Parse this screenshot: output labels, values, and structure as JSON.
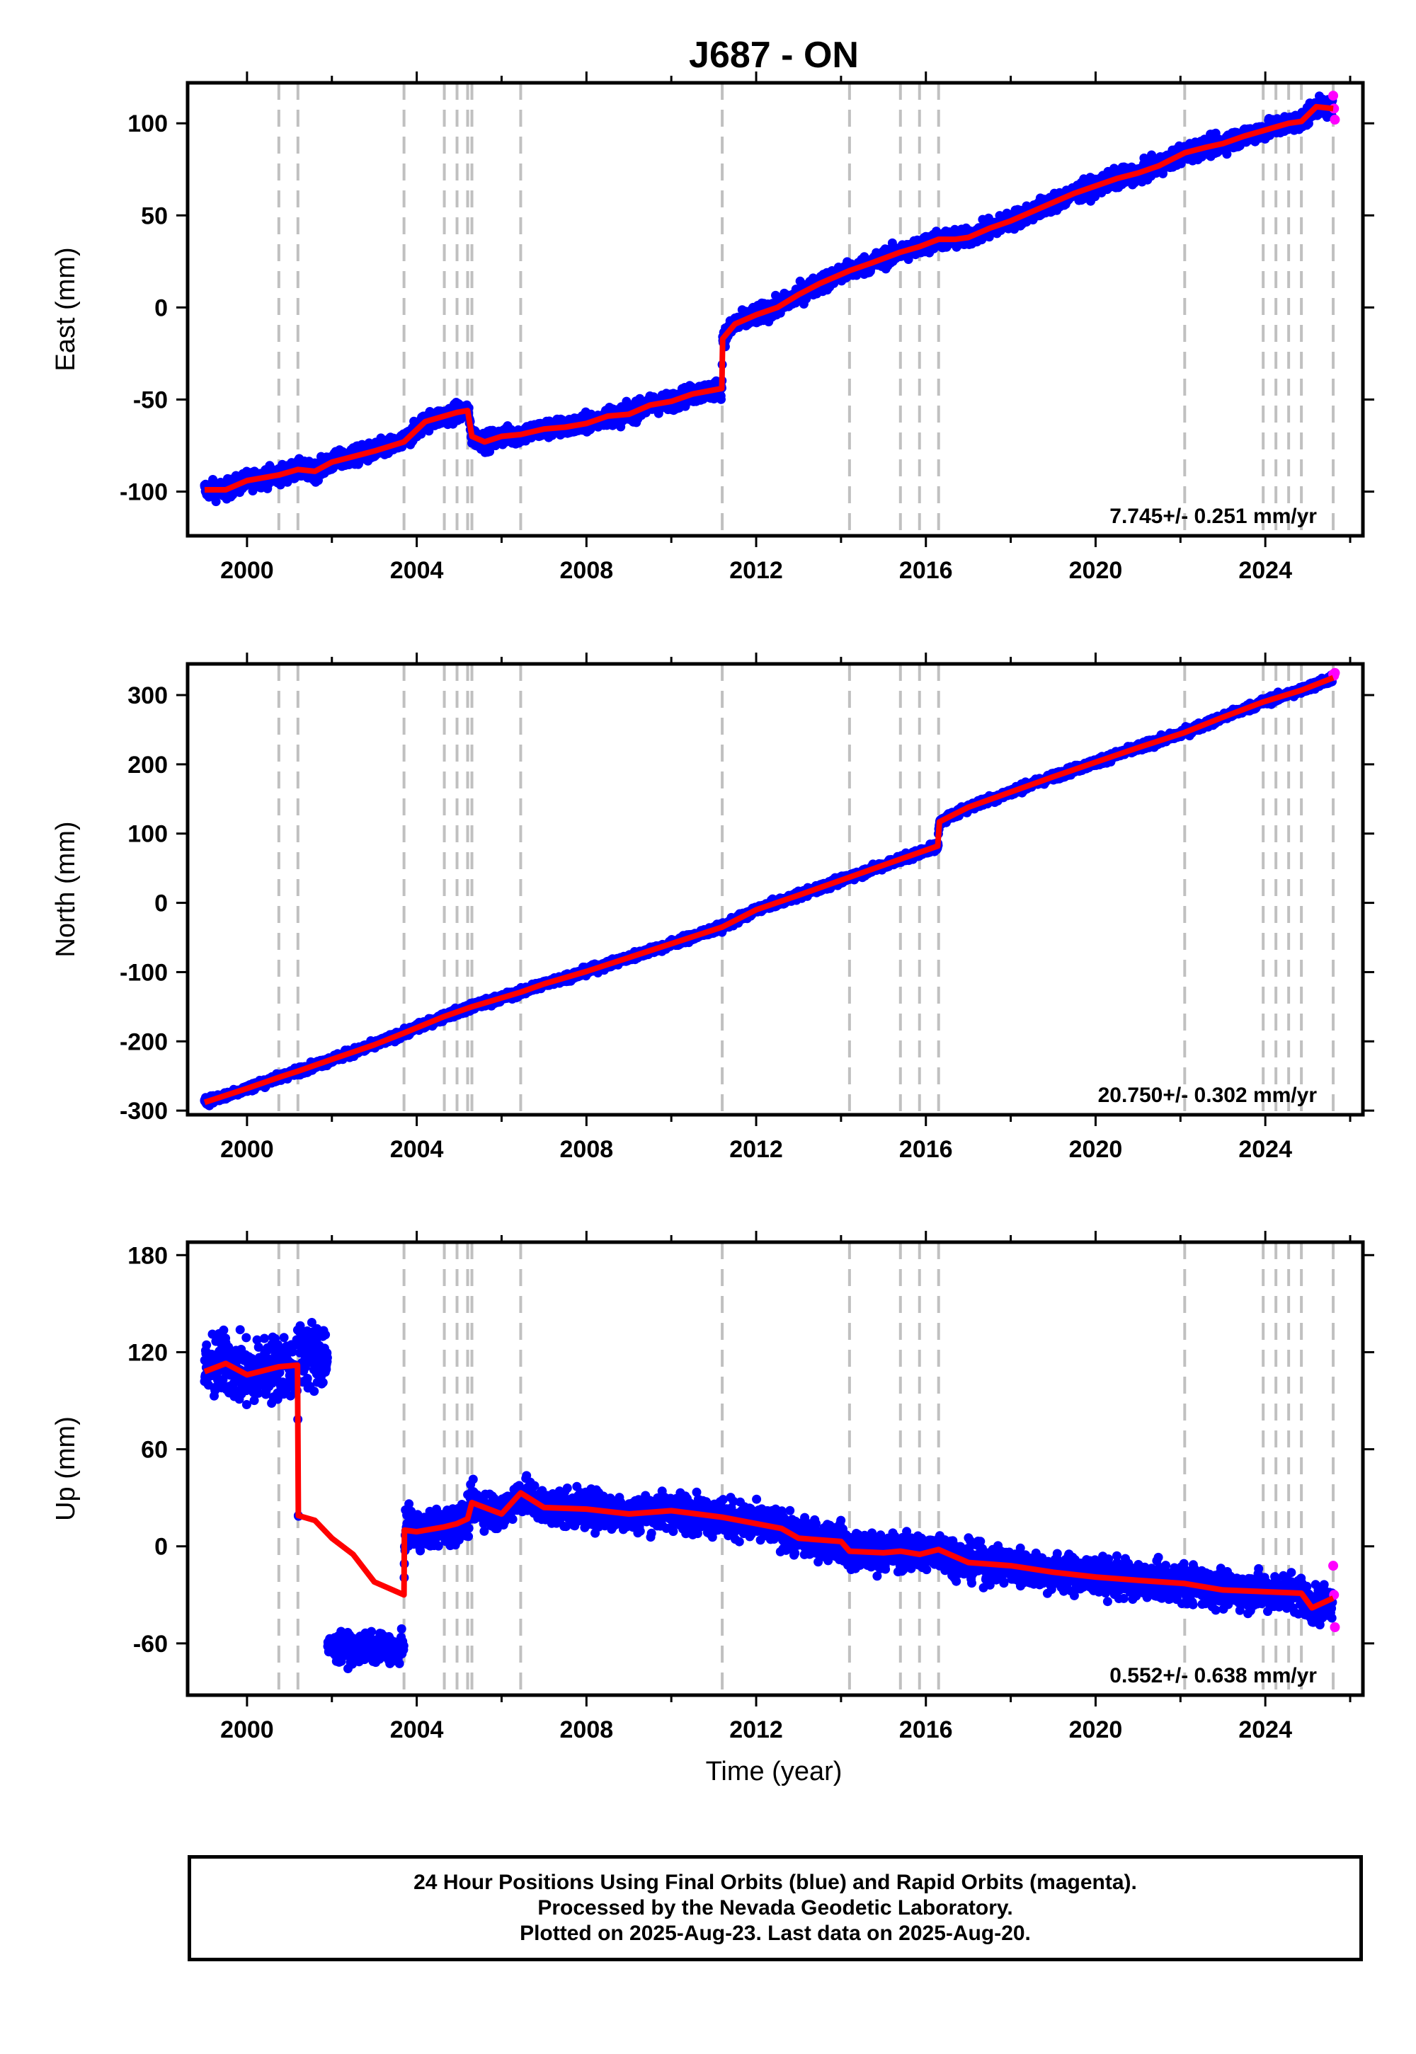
{
  "chart_data": {
    "title": "J687 - ON",
    "xlabel": "Time (year)",
    "x_ticks": [
      "2000",
      "2004",
      "2008",
      "2012",
      "2016",
      "2020",
      "2024"
    ],
    "xlim": [
      1998.6,
      2026.3
    ],
    "event_lines": [
      2000.75,
      2001.2,
      2003.7,
      2004.65,
      2004.95,
      2005.2,
      2005.3,
      2006.45,
      2011.2,
      2014.2,
      2015.4,
      2015.85,
      2016.3,
      2022.1,
      2023.95,
      2024.25,
      2024.55,
      2024.85,
      2025.6
    ],
    "colors": {
      "final": "#0000ff",
      "rapid": "#ff00ff",
      "model": "#ff0000",
      "event_line": "#c0c0c0"
    },
    "legend": {
      "final": "Final Orbits (blue)",
      "rapid": "Rapid Orbits (magenta)"
    },
    "panels": [
      {
        "type": "scatter",
        "ylabel": "East (mm)",
        "ylim": [
          -124,
          122
        ],
        "y_ticks": [
          "-100",
          "-50",
          "0",
          "50",
          "100"
        ],
        "y_tick_values": [
          -100,
          -50,
          0,
          50,
          100
        ],
        "rate": "7.745+/- 0.251 mm/yr",
        "model": {
          "x": [
            1999.0,
            1999.5,
            2000.0,
            2000.75,
            2001.2,
            2001.6,
            2002.0,
            2002.5,
            2003.0,
            2003.7,
            2004.2,
            2004.65,
            2004.95,
            2005.2,
            2005.3,
            2005.6,
            2006.0,
            2006.45,
            2007.0,
            2007.5,
            2008.0,
            2008.5,
            2009.0,
            2009.5,
            2010.0,
            2010.5,
            2011.19,
            2011.21,
            2011.5,
            2012.0,
            2012.5,
            2013.0,
            2013.5,
            2014.2,
            2014.7,
            2015.4,
            2015.85,
            2016.3,
            2016.7,
            2017.0,
            2017.5,
            2018.0,
            2018.5,
            2019.0,
            2019.5,
            2020.0,
            2020.5,
            2021.0,
            2021.5,
            2022.1,
            2022.6,
            2023.0,
            2023.5,
            2023.95,
            2024.25,
            2024.55,
            2024.85,
            2025.2,
            2025.6
          ],
          "y": [
            -99,
            -99,
            -94,
            -91,
            -88,
            -89,
            -84,
            -81,
            -78,
            -73,
            -62,
            -59,
            -57,
            -56,
            -70,
            -73,
            -70,
            -69,
            -66,
            -65,
            -63,
            -59,
            -58,
            -53,
            -51,
            -47,
            -44,
            -17,
            -9,
            -4,
            0,
            7,
            13,
            20,
            24,
            30,
            33,
            37,
            37,
            38,
            43,
            47,
            52,
            57,
            62,
            66,
            70,
            73,
            77,
            84,
            87,
            89,
            93,
            96,
            98,
            100,
            101,
            109,
            108
          ]
        },
        "rapid": {
          "x": [
            2025.6,
            2025.62,
            2025.64
          ],
          "y": [
            115,
            108,
            102
          ]
        }
      },
      {
        "type": "scatter",
        "ylabel": "North (mm)",
        "ylim": [
          -306,
          345
        ],
        "y_ticks": [
          "-300",
          "-200",
          "-100",
          "0",
          "100",
          "200",
          "300"
        ],
        "y_tick_values": [
          -300,
          -200,
          -100,
          0,
          100,
          200,
          300
        ],
        "rate": "20.750+/- 0.302 mm/yr",
        "model": {
          "x": [
            1999.0,
            2000.0,
            2000.75,
            2001.2,
            2002.0,
            2003.0,
            2003.7,
            2004.65,
            2005.3,
            2006.45,
            2007.0,
            2008.0,
            2009.0,
            2010.0,
            2011.2,
            2012.0,
            2013.0,
            2014.2,
            2015.4,
            2016.28,
            2016.32,
            2017.0,
            2018.0,
            2019.0,
            2020.0,
            2021.0,
            2022.1,
            2023.0,
            2023.95,
            2024.85,
            2025.6
          ],
          "y": [
            -288,
            -268,
            -252,
            -243,
            -226,
            -205,
            -188,
            -164,
            -150,
            -129,
            -117,
            -99,
            -79,
            -59,
            -35,
            -10,
            11,
            37,
            63,
            82,
            117,
            138,
            160,
            182,
            203,
            224,
            246,
            268,
            290,
            307,
            325
          ]
        },
        "rapid": {
          "x": [
            2025.6,
            2025.62,
            2025.64
          ],
          "y": [
            330,
            328,
            332
          ]
        }
      },
      {
        "type": "scatter",
        "ylabel": "Up (mm)",
        "ylim": [
          -92,
          188
        ],
        "y_ticks": [
          "-60",
          "0",
          "60",
          "120",
          "180"
        ],
        "y_tick_values": [
          -60,
          0,
          60,
          120,
          180
        ],
        "rate": "0.552+/- 0.638 mm/yr",
        "model": {
          "x": [
            1999.0,
            1999.5,
            2000.0,
            2000.75,
            2001.19,
            2001.21,
            2001.6,
            2002.0,
            2002.5,
            2003.0,
            2003.7,
            2003.71,
            2004.0,
            2004.65,
            2004.95,
            2005.2,
            2005.3,
            2006.0,
            2006.45,
            2007.0,
            2008.0,
            2009.0,
            2010.0,
            2011.2,
            2012.0,
            2012.6,
            2013.0,
            2014.0,
            2014.2,
            2015.0,
            2015.4,
            2015.85,
            2016.3,
            2017.0,
            2018.0,
            2019.0,
            2020.0,
            2021.0,
            2022.1,
            2023.0,
            2023.95,
            2024.85,
            2025.1,
            2025.6
          ],
          "y": [
            108,
            113,
            106,
            111,
            112,
            19,
            16,
            5,
            -5,
            -22,
            -30,
            10,
            9,
            12,
            14,
            17,
            27,
            20,
            33,
            24,
            23,
            20,
            22,
            18,
            14,
            11,
            5,
            3,
            -3,
            -4,
            -3,
            -5,
            -2,
            -10,
            -12,
            -16,
            -19,
            -21,
            -23,
            -27,
            -28,
            -29,
            -38,
            -32
          ]
        },
        "rapid": {
          "x": [
            2025.6,
            2025.62,
            2025.64
          ],
          "y": [
            -12,
            -30,
            -50
          ]
        }
      }
    ]
  },
  "footer": {
    "line1": "24 Hour Positions Using Final Orbits (blue) and Rapid Orbits (magenta).",
    "line2": "Processed by the Nevada Geodetic Laboratory.",
    "line3": "Plotted on 2025-Aug-23. Last data on 2025-Aug-20."
  }
}
